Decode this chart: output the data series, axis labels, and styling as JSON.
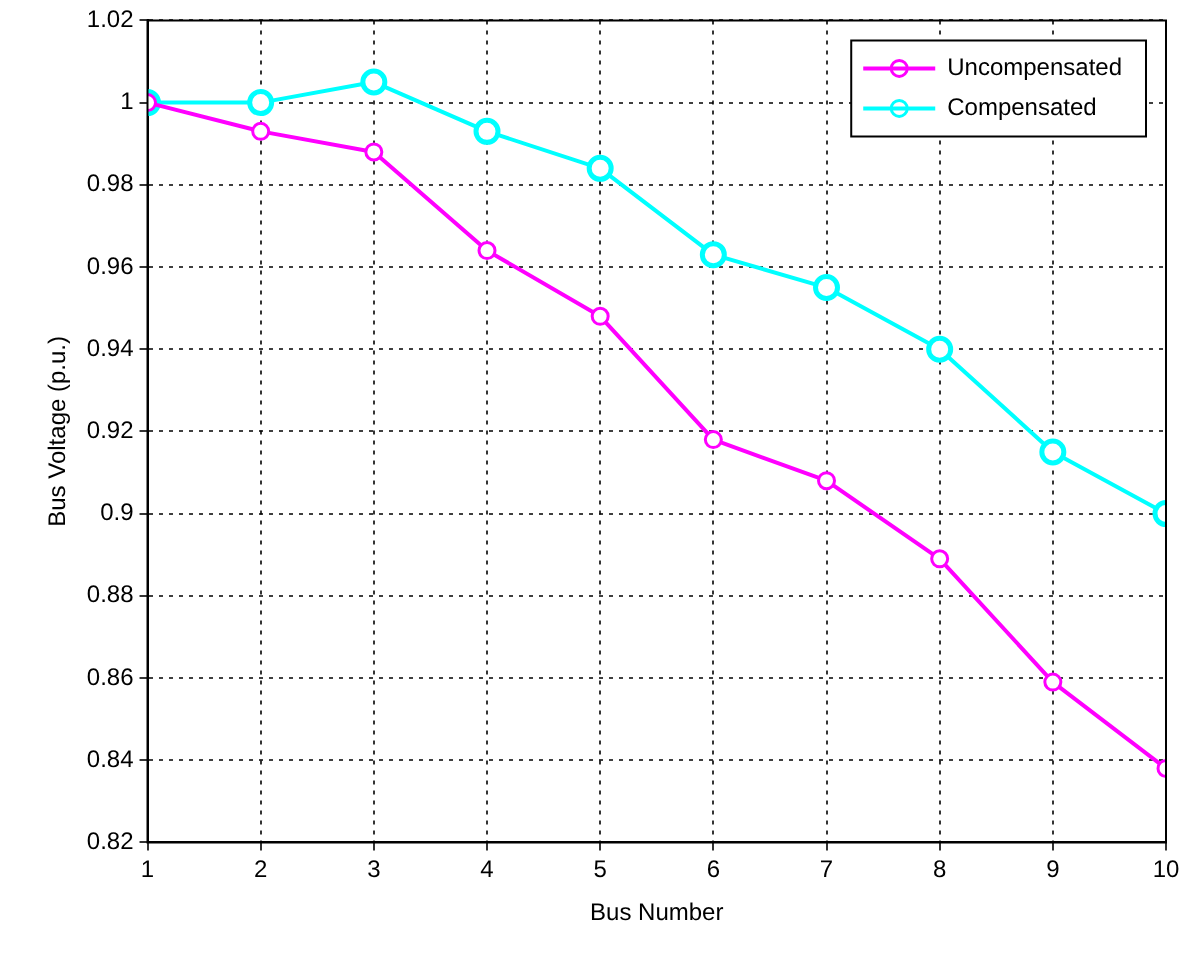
{
  "chart_data": {
    "type": "line",
    "xlabel": "Bus Number",
    "ylabel": "Bus Voltage (p.u.)",
    "x": [
      1,
      2,
      3,
      4,
      5,
      6,
      7,
      8,
      9,
      10
    ],
    "series": [
      {
        "name": "Uncompensated",
        "color": "#ff00ff",
        "values": [
          1.0,
          0.993,
          0.988,
          0.964,
          0.948,
          0.918,
          0.908,
          0.889,
          0.859,
          0.838
        ]
      },
      {
        "name": "Compensated",
        "color": "#00ffff",
        "values": [
          1.0,
          1.0,
          1.005,
          0.993,
          0.984,
          0.963,
          0.955,
          0.94,
          0.915,
          0.9
        ]
      }
    ],
    "xlim": [
      1,
      10
    ],
    "xticks": [
      1,
      2,
      3,
      4,
      5,
      6,
      7,
      8,
      9,
      10
    ],
    "ylim": [
      0.82,
      1.02
    ],
    "yticks": [
      0.82,
      0.84,
      0.86,
      0.88,
      0.9,
      0.92,
      0.94,
      0.96,
      0.98,
      1,
      1.02
    ],
    "grid": true,
    "legend": "top right",
    "marker": "circle",
    "line_style": "solid"
  }
}
